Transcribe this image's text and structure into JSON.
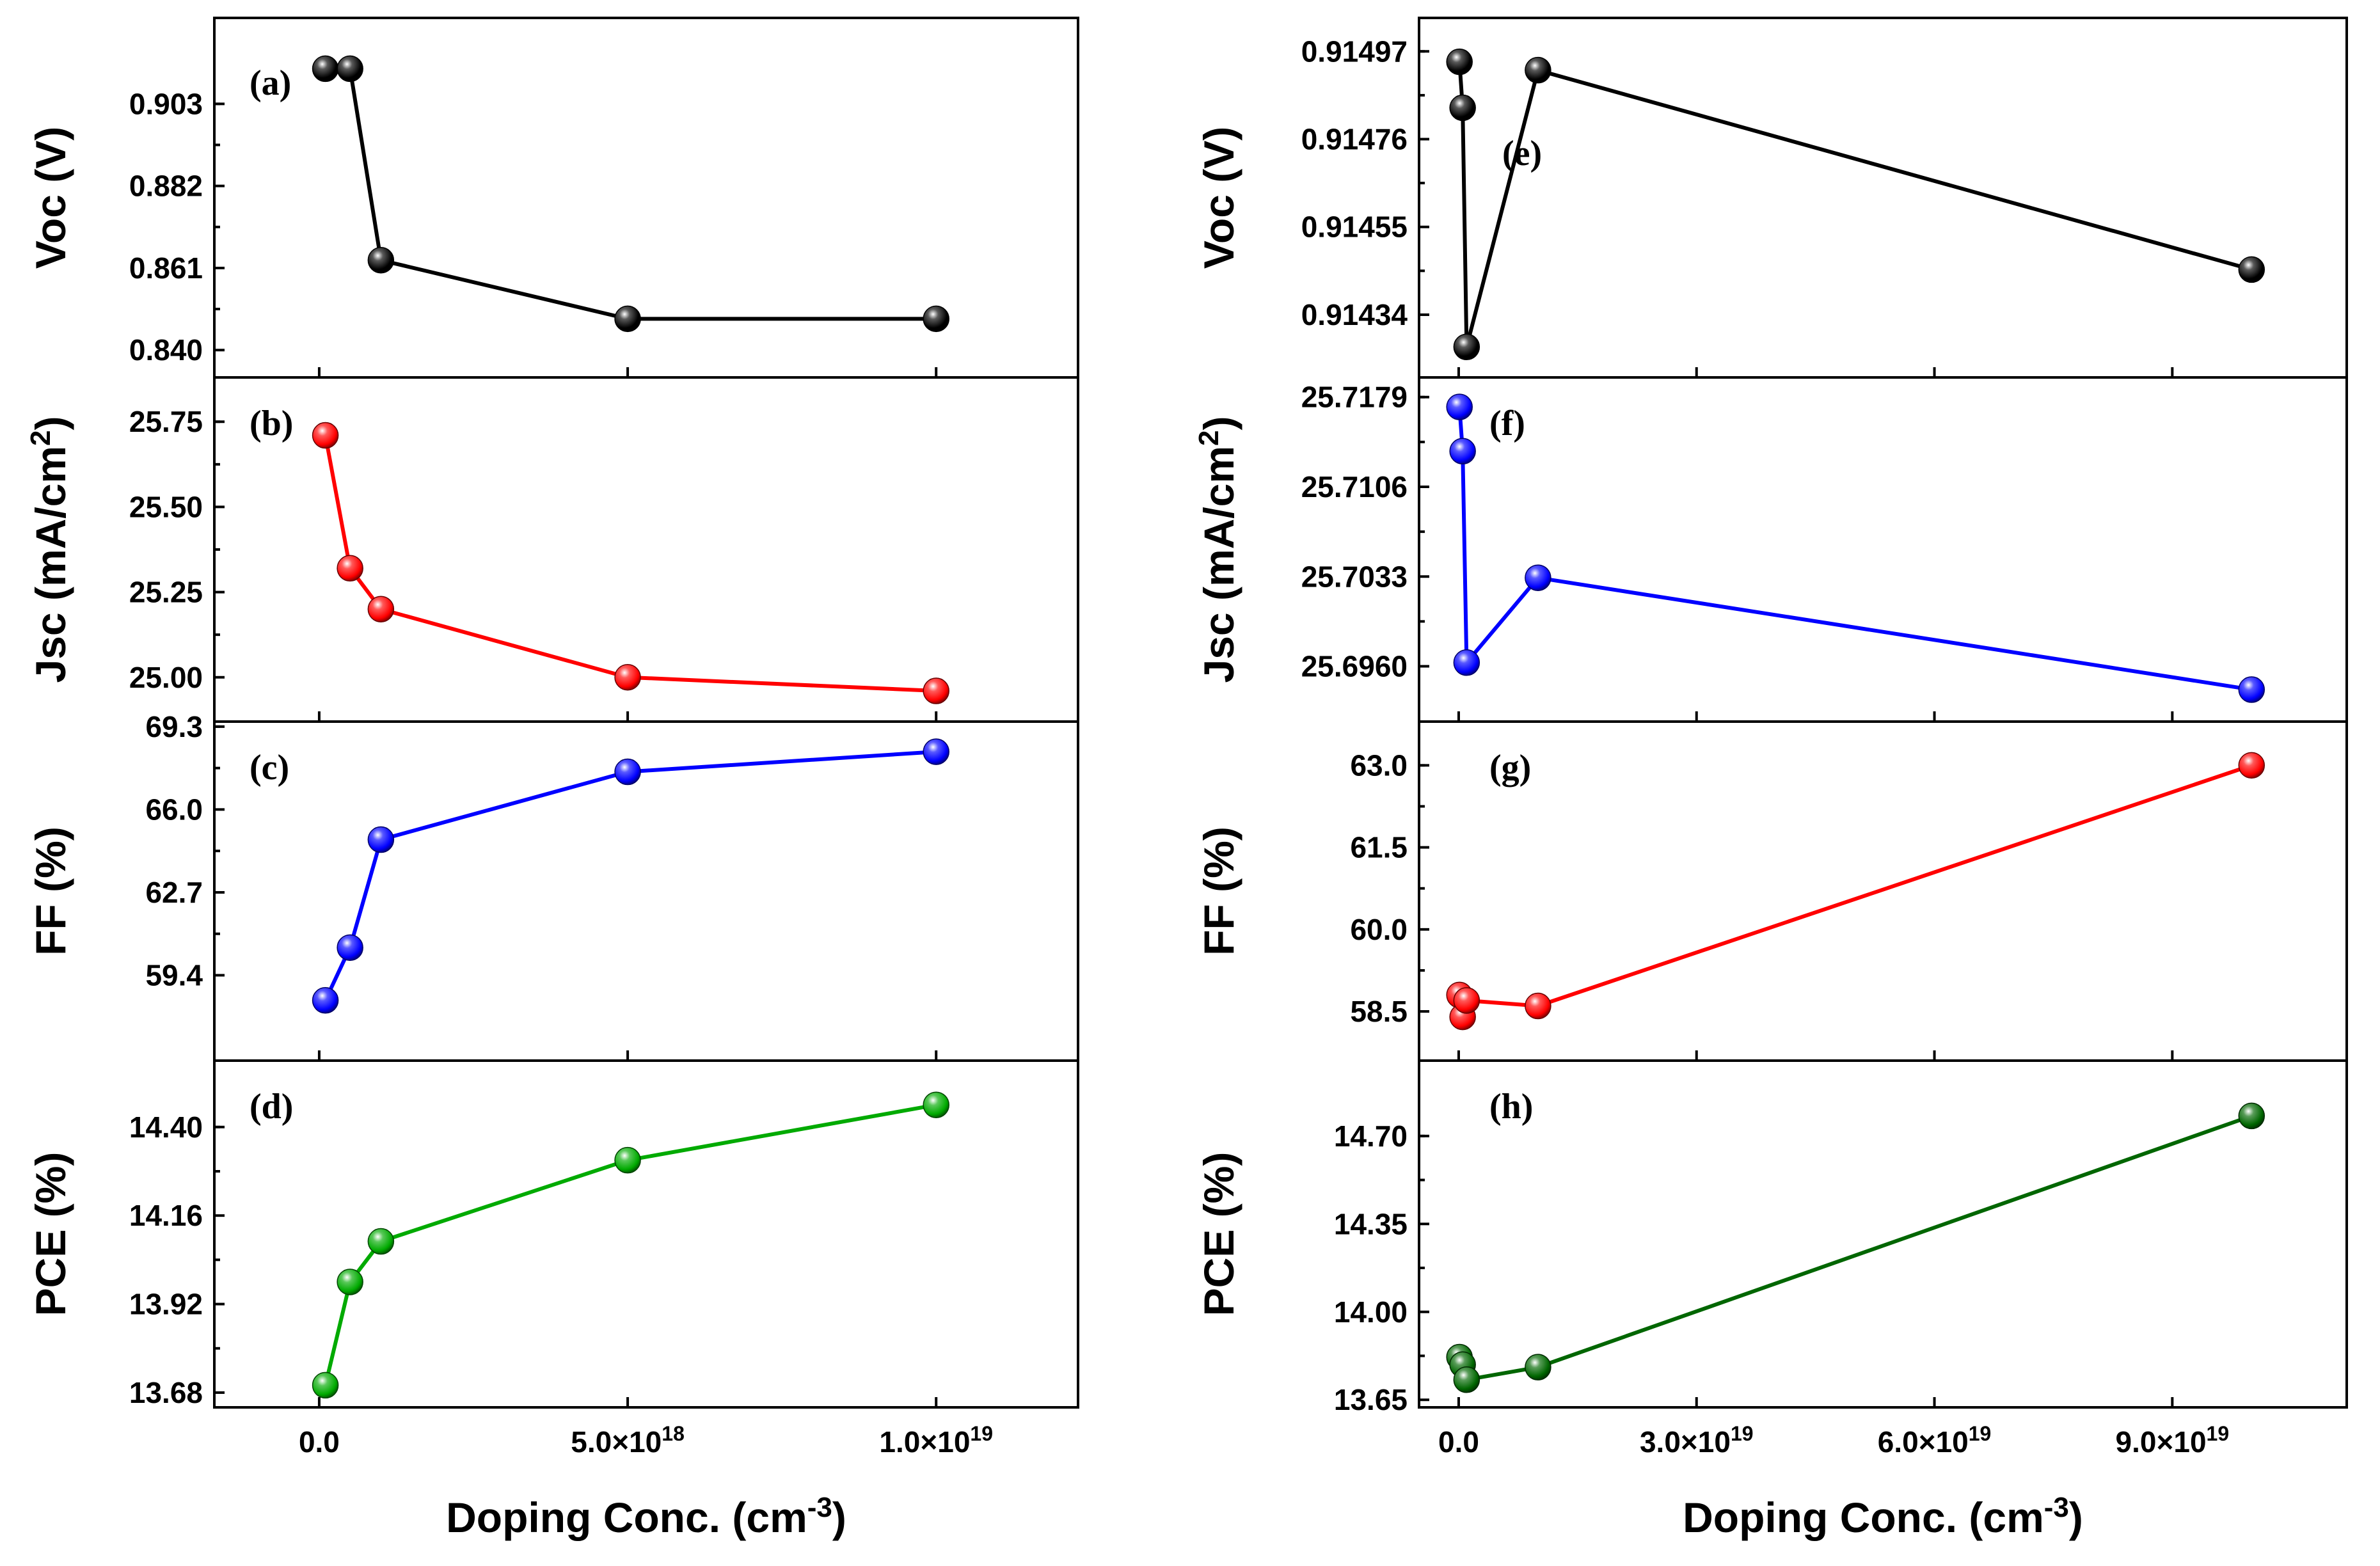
{
  "chart_data": [
    {
      "type": "line",
      "panel": "(a)",
      "ylabel": "Voc (V)",
      "color": "#000000",
      "x": [
        1e+17,
        5e+17,
        1e+18,
        5e+18,
        1e+19
      ],
      "values": [
        0.912,
        0.912,
        0.863,
        0.848,
        0.848
      ],
      "ylim": [
        0.833,
        0.925
      ],
      "yticks": [
        0.84,
        0.861,
        0.882,
        0.903
      ],
      "ytick_labels": [
        "0.840",
        "0.861",
        "0.882",
        "0.903"
      ]
    },
    {
      "type": "line",
      "panel": "(b)",
      "ylabel": "Jsc (mA/cm",
      "ylabel_sup": "2",
      "ylabel_end": ")",
      "color": "#ff0000",
      "x": [
        1e+17,
        5e+17,
        1e+18,
        5e+18,
        1e+19
      ],
      "values": [
        25.71,
        25.32,
        25.2,
        25.0,
        24.96
      ],
      "ylim": [
        24.87,
        25.88
      ],
      "yticks": [
        25.0,
        25.25,
        25.5,
        25.75
      ],
      "ytick_labels": [
        "25.00",
        "25.25",
        "25.50",
        "25.75"
      ]
    },
    {
      "type": "line",
      "panel": "(c)",
      "ylabel": "FF (%)",
      "color": "#0000ff",
      "x": [
        1e+17,
        5e+17,
        1e+18,
        5e+18,
        1e+19
      ],
      "values": [
        58.4,
        60.5,
        64.8,
        67.5,
        68.3
      ],
      "ylim": [
        56.0,
        69.5
      ],
      "yticks": [
        59.4,
        62.7,
        66.0,
        69.3
      ],
      "ytick_labels": [
        "59.4",
        "62.7",
        "66.0",
        "69.3"
      ]
    },
    {
      "type": "line",
      "panel": "(d)",
      "ylabel": "PCE (%)",
      "color": "#00aa00",
      "x": [
        1e+17,
        5e+17,
        1e+18,
        5e+18,
        1e+19
      ],
      "values": [
        13.7,
        13.98,
        14.09,
        14.31,
        14.46
      ],
      "xlabel": "Doping Conc. (cm",
      "xlabel_sup": "-3",
      "xlabel_end": ")",
      "ylim": [
        13.64,
        14.58
      ],
      "yticks": [
        13.68,
        13.92,
        14.16,
        14.4
      ],
      "ytick_labels": [
        "13.68",
        "13.92",
        "14.16",
        "14.40"
      ],
      "xlim": [
        -1.7e+18,
        1.23e+19
      ],
      "xticks": [
        0,
        5e+18,
        1e+19
      ],
      "xtick_labels": [
        "0.0",
        "5.0×10",
        "1.0×10"
      ],
      "xtick_sups": [
        "",
        "18",
        "19"
      ]
    },
    {
      "type": "line",
      "panel": "(e)",
      "ylabel": "Voc (V)",
      "color": "#000000",
      "x": [
        1e+17,
        5e+17,
        1e+18,
        1e+19,
        1e+20
      ],
      "values": [
        0.914945,
        0.914835,
        0.914263,
        0.914925,
        0.914448
      ],
      "ylim": [
        0.91419,
        0.91505
      ],
      "yticks": [
        0.91434,
        0.91455,
        0.91476,
        0.91497
      ],
      "ytick_labels": [
        "0.91434",
        "0.91455",
        "0.91476",
        "0.91497"
      ]
    },
    {
      "type": "line",
      "panel": "(f)",
      "ylabel": "Jsc (mA/cm",
      "ylabel_sup": "2",
      "ylabel_end": ")",
      "color": "#0000ff",
      "x": [
        1e+17,
        5e+17,
        1e+18,
        1e+19,
        1e+20
      ],
      "values": [
        25.7171,
        25.7135,
        25.6963,
        25.7032,
        25.6941
      ],
      "ylim": [
        25.6915,
        25.7195
      ],
      "yticks": [
        25.696,
        25.7033,
        25.7106,
        25.7179
      ],
      "ytick_labels": [
        "25.6960",
        "25.7033",
        "25.7106",
        "25.7179"
      ]
    },
    {
      "type": "line",
      "panel": "(g)",
      "ylabel": "FF (%)",
      "color": "#ff0000",
      "x": [
        1e+17,
        5e+17,
        1e+18,
        1e+19,
        1e+20
      ],
      "values": [
        58.8,
        58.4,
        58.7,
        58.6,
        63.0
      ],
      "ylim": [
        57.6,
        63.8
      ],
      "yticks": [
        58.5,
        60.0,
        61.5,
        63.0
      ],
      "ytick_labels": [
        "58.5",
        "60.0",
        "61.5",
        "63.0"
      ]
    },
    {
      "type": "line",
      "panel": "(h)",
      "ylabel": "PCE (%)",
      "color": "#006600",
      "x": [
        1e+17,
        5e+17,
        1e+18,
        1e+19,
        1e+20
      ],
      "values": [
        13.82,
        13.79,
        13.73,
        13.78,
        14.78
      ],
      "xlabel": "Doping Conc. (cm",
      "xlabel_sup": "-3",
      "xlabel_end": ")",
      "ylim": [
        13.62,
        15.0
      ],
      "yticks": [
        13.65,
        14.0,
        14.35,
        14.7
      ],
      "ytick_labels": [
        "13.65",
        "14.00",
        "14.35",
        "14.70"
      ],
      "xlim": [
        -5e+18,
        1.12e+20
      ],
      "xticks": [
        0,
        3e+19,
        6e+19,
        9e+19
      ],
      "xtick_labels": [
        "0.0",
        "3.0×10",
        "6.0×10",
        "9.0×10"
      ],
      "xtick_sups": [
        "",
        "19",
        "19",
        "19"
      ]
    }
  ]
}
